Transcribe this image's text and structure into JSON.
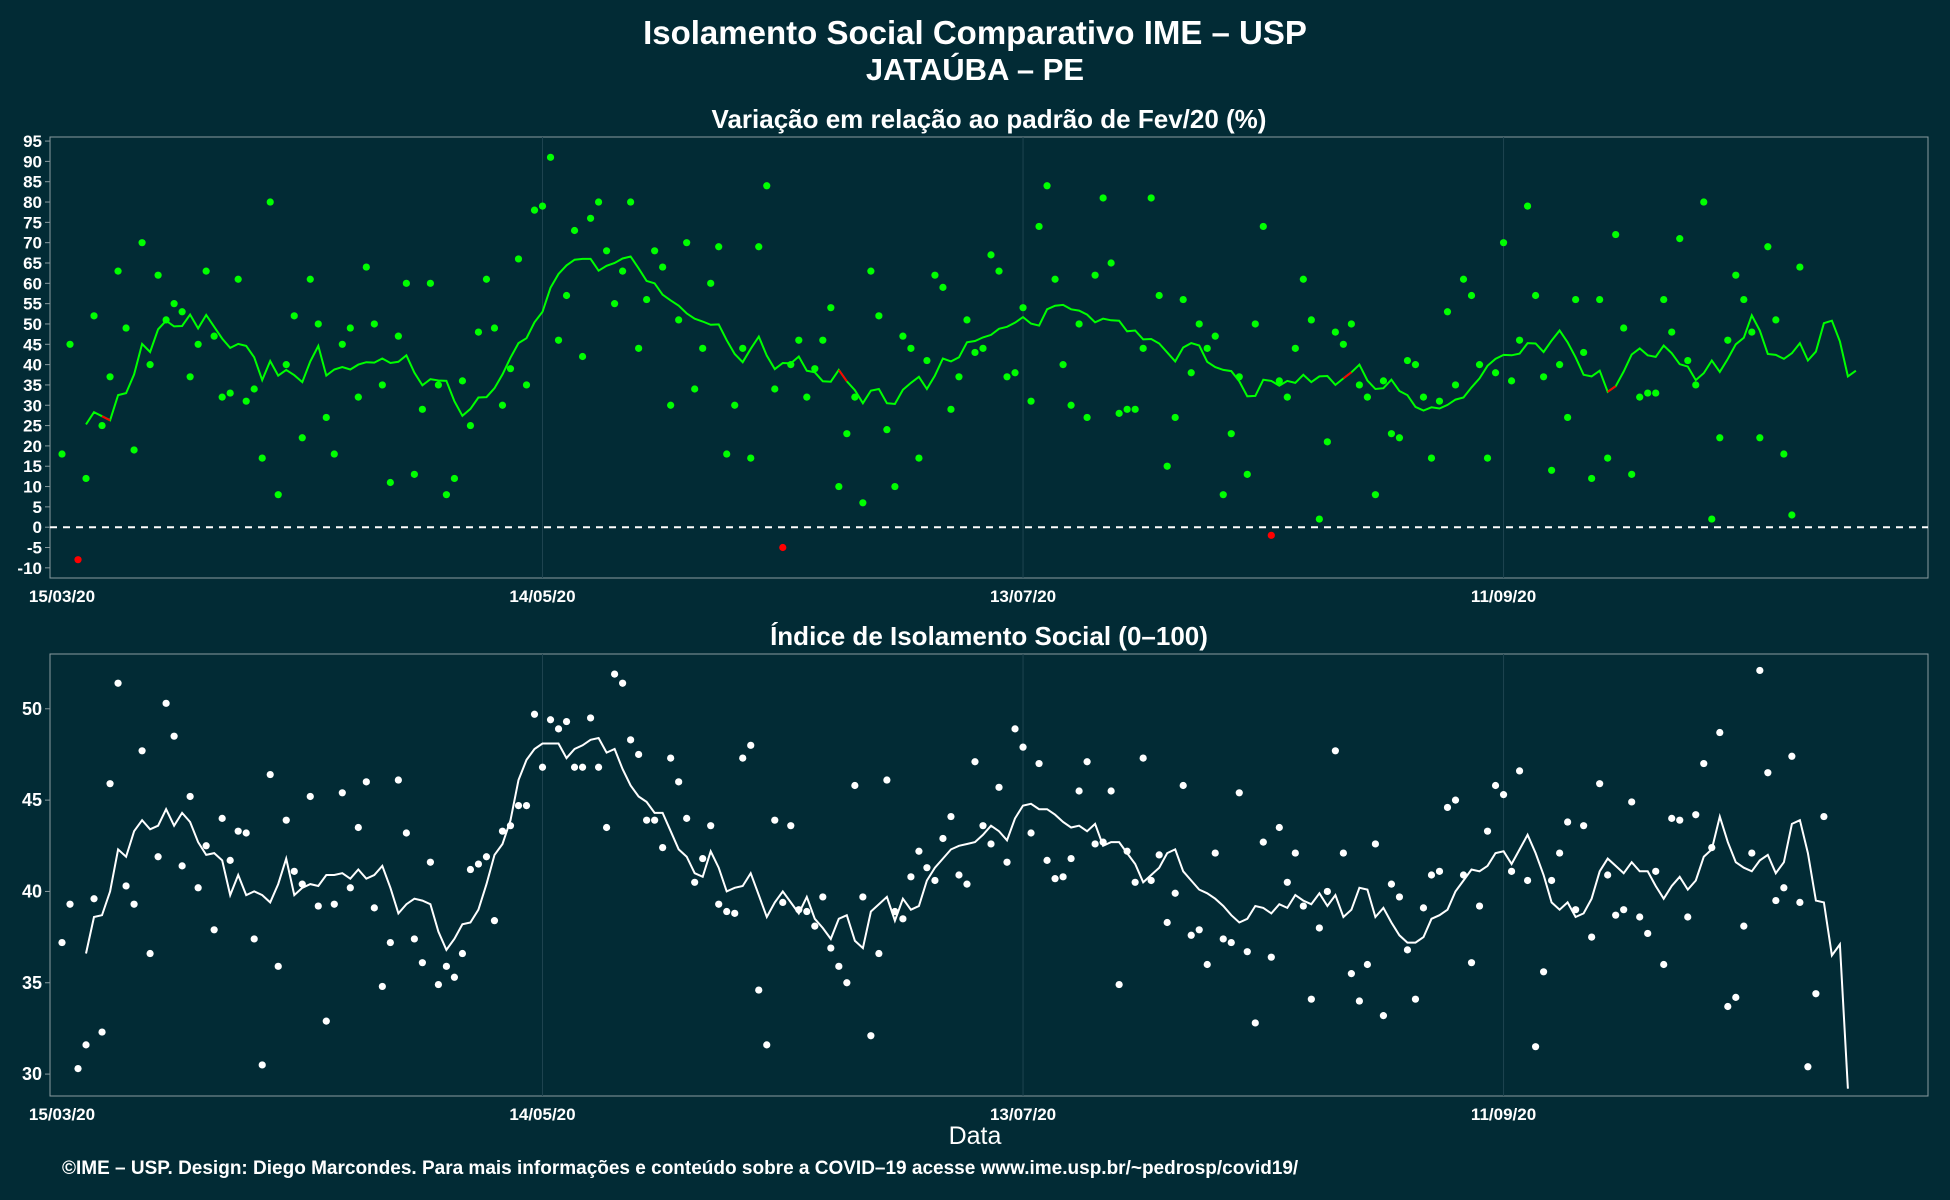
{
  "header": {
    "title": "Isolamento Social Comparativo IME – USP",
    "subtitle": "JATAÚBA – PE"
  },
  "footer": {
    "text": "©IME – USP. Design: Diego Marcondes. Para mais informações e conteúdo sobre a COVID–19 acesse www.ime.usp.br/~pedrosp/covid19/"
  },
  "colors": {
    "background": "#022b35",
    "positive": "#00ff00",
    "negative": "#ff0000",
    "index": "#ffffff",
    "grid": "#1e4450"
  },
  "chart_data": [
    {
      "type": "scatter",
      "title": "Variação em relação ao padrão de Fev/20 (%)",
      "xlabel": "",
      "ylabel": "",
      "x_start": "15/03/20",
      "x_end": "02/11/20",
      "xticks": [
        "15/03/20",
        "14/05/20",
        "13/07/20",
        "11/09/20"
      ],
      "yticks": [
        -10,
        -5,
        0,
        5,
        10,
        15,
        20,
        25,
        30,
        35,
        40,
        45,
        50,
        55,
        60,
        65,
        70,
        75,
        80,
        85,
        90,
        95
      ],
      "ylim": [
        -12.5,
        96
      ],
      "reference_line": 0,
      "grid": true,
      "series": [
        {
          "name": "",
          "points": [
            18,
            45,
            -8,
            12,
            52,
            25,
            37,
            63,
            49,
            19,
            70,
            40,
            62,
            51,
            55,
            53,
            37,
            45,
            63,
            47,
            32,
            33,
            61,
            31,
            34,
            17,
            80,
            8,
            40,
            52,
            22,
            61,
            50,
            27,
            18,
            45,
            49,
            32,
            64,
            50,
            35,
            11,
            47,
            60,
            13,
            29,
            60,
            35,
            8,
            12,
            36,
            25,
            48,
            61,
            49,
            30,
            39,
            66,
            35,
            78,
            79,
            91,
            46,
            57,
            73,
            42,
            76,
            80,
            68,
            55,
            63,
            80,
            44,
            56,
            68,
            64,
            30,
            51,
            70,
            34,
            44,
            60,
            69,
            18,
            30,
            44,
            17,
            69,
            84,
            34,
            -5,
            40,
            46,
            32,
            39,
            46,
            54,
            10,
            23,
            32,
            6,
            63,
            52,
            24,
            10,
            47,
            44,
            17,
            41,
            62,
            59,
            29,
            37,
            51,
            43,
            44,
            67,
            63,
            37,
            38,
            54,
            31,
            74,
            84,
            61,
            40,
            30,
            50,
            27,
            62,
            81,
            65,
            28,
            29,
            29,
            44,
            81,
            57,
            15,
            27,
            56,
            38,
            50,
            44,
            47,
            8,
            23,
            37,
            13,
            50,
            74,
            -2,
            36,
            32,
            44,
            61,
            51,
            2,
            21,
            48,
            45,
            50,
            35,
            32,
            8,
            36,
            23,
            22,
            41,
            40,
            32,
            17,
            31,
            53,
            35,
            61,
            57,
            40,
            17,
            38,
            70,
            36,
            46,
            79,
            57,
            37,
            14,
            40,
            27,
            56,
            43,
            12,
            56,
            17,
            72,
            49,
            13,
            32,
            33,
            33,
            56,
            48,
            71,
            41,
            35,
            80,
            2,
            22,
            46,
            62,
            56,
            48,
            22,
            69,
            51,
            18,
            3,
            64
          ]
        },
        {
          "name": "",
          "smoothed": [
            25.3,
            28.3,
            27.3,
            26.3,
            32.5,
            33.0,
            37.6,
            45.1,
            43.1,
            48.7,
            50.8,
            49.4,
            49.5,
            52.3,
            48.9,
            52.2,
            49.3,
            46.4,
            44.1,
            45.1,
            44.6,
            41.8,
            36.2,
            40.9,
            37.3,
            38.7,
            37.4,
            35.7,
            40.8,
            44.6,
            37.3,
            38.8,
            39.4,
            38.8,
            40.0,
            40.6,
            40.5,
            41.5,
            40.4,
            40.7,
            42.3,
            38.0,
            34.9,
            36.4,
            36.1,
            36.0,
            31.0,
            27.4,
            29.1,
            31.9,
            32.0,
            34.2,
            37.6,
            41.7,
            45.3,
            46.5,
            50.4,
            53.0,
            58.9,
            62.3,
            64.4,
            65.8,
            66.0,
            66.0,
            63.1,
            64.3,
            65.0,
            66.1,
            66.6,
            63.7,
            60.6,
            60.0,
            57.2,
            55.8,
            54.5,
            52.6,
            51.3,
            50.6,
            49.8,
            49.9,
            46.0,
            42.6,
            40.6,
            43.9,
            46.9,
            42.2,
            38.9,
            40.4,
            40.3,
            42.0,
            38.5,
            38.1,
            35.9,
            35.8,
            38.7,
            35.9,
            33.7,
            30.5,
            33.6,
            34.0,
            30.5,
            30.3,
            33.8,
            35.5,
            37.0,
            34.0,
            37.3,
            41.5,
            40.8,
            41.8,
            45.5,
            45.8,
            46.7,
            47.3,
            48.8,
            49.3,
            50.3,
            51.7,
            50.1,
            49.6,
            53.6,
            54.5,
            54.7,
            53.6,
            53.3,
            52.3,
            50.4,
            51.3,
            50.9,
            50.8,
            48.2,
            48.4,
            46.2,
            46.3,
            45.2,
            43.0,
            40.8,
            44.2,
            45.3,
            44.7,
            40.7,
            39.4,
            38.7,
            38.4,
            35.9,
            32.2,
            32.3,
            36.3,
            36.0,
            34.8,
            36.0,
            35.5,
            37.5,
            35.7,
            37.1,
            37.2,
            35.0,
            36.6,
            38.1,
            40.0,
            36.1,
            34.0,
            34.2,
            36.3,
            33.5,
            32.5,
            29.6,
            28.7,
            29.5,
            29.2,
            30.1,
            31.4,
            31.9,
            34.4,
            36.6,
            39.7,
            41.4,
            42.4,
            42.3,
            42.7,
            45.3,
            45.2,
            43.1,
            45.9,
            48.4,
            45.5,
            41.8,
            37.5,
            37.1,
            38.5,
            33.3,
            34.7,
            38.3,
            42.5,
            44.0,
            42.3,
            41.9,
            44.7,
            42.8,
            40.1,
            39.5,
            36.2,
            37.9,
            41.0,
            38.2,
            41.4,
            45.0,
            46.6,
            52.1,
            48.4,
            42.6,
            42.4,
            41.4,
            42.8,
            45.3,
            41.0,
            43.2,
            50.2,
            50.8,
            45.7,
            37.1,
            38.5
          ],
          "negative_segments": [
            [
              2,
              3
            ],
            [
              94,
              95
            ],
            [
              157,
              158
            ],
            [
              190,
              191
            ]
          ]
        }
      ]
    },
    {
      "type": "scatter",
      "title": "Índice de Isolamento Social (0–100)",
      "xlabel": "Data",
      "ylabel": "",
      "x_start": "15/03/20",
      "x_end": "02/11/20",
      "xticks": [
        "15/03/20",
        "14/05/20",
        "13/07/20",
        "11/09/20"
      ],
      "yticks": [
        30,
        35,
        40,
        45,
        50
      ],
      "ylim": [
        28.8,
        53.0
      ],
      "grid": true,
      "series": [
        {
          "name": "",
          "points": [
            37.2,
            39.3,
            30.3,
            31.6,
            39.6,
            32.3,
            45.9,
            51.4,
            40.3,
            39.3,
            47.7,
            36.6,
            41.9,
            50.3,
            48.5,
            41.4,
            45.2,
            40.2,
            42.5,
            37.9,
            44.0,
            41.7,
            43.3,
            43.2,
            37.4,
            30.5,
            46.4,
            35.9,
            43.9,
            41.1,
            40.4,
            45.2,
            39.2,
            32.9,
            39.3,
            45.4,
            40.2,
            43.5,
            46.0,
            39.1,
            34.8,
            37.2,
            46.1,
            43.2,
            37.4,
            36.1,
            41.6,
            34.9,
            35.9,
            35.3,
            36.6,
            41.2,
            41.5,
            41.9,
            38.4,
            43.3,
            43.6,
            44.7,
            44.7,
            49.7,
            46.8,
            49.4,
            48.9,
            49.3,
            46.8,
            46.8,
            49.5,
            46.8,
            43.5,
            51.9,
            51.4,
            48.3,
            47.5,
            43.9,
            43.9,
            42.4,
            47.3,
            46.0,
            44.0,
            40.5,
            41.8,
            43.6,
            39.3,
            38.9,
            38.8,
            47.3,
            48.0,
            34.6,
            31.6,
            43.9,
            39.4,
            43.6,
            39.0,
            38.9,
            38.1,
            39.7,
            36.9,
            35.9,
            35.0,
            45.8,
            39.7,
            32.1,
            36.6,
            46.1,
            38.9,
            38.5,
            40.8,
            42.2,
            41.3,
            40.6,
            42.9,
            44.1,
            40.9,
            40.4,
            47.1,
            43.6,
            42.6,
            45.7,
            41.6,
            48.9,
            47.9,
            43.2,
            47.0,
            41.7,
            40.7,
            40.8,
            41.8,
            45.5,
            47.1,
            42.6,
            42.7,
            45.5,
            34.9,
            42.2,
            40.5,
            47.3,
            40.6,
            42.0,
            38.3,
            39.9,
            45.8,
            37.6,
            37.9,
            36.0,
            42.1,
            37.4,
            37.2,
            45.4,
            36.7,
            32.8,
            42.7,
            36.4,
            43.5,
            40.5,
            42.1,
            39.2,
            34.1,
            38.0,
            40.0,
            47.7,
            42.1,
            35.5,
            34.0,
            36.0,
            42.6,
            33.2,
            40.4,
            39.7,
            36.8,
            34.1,
            39.1,
            40.9,
            41.1,
            44.6,
            45.0,
            40.9,
            36.1,
            39.2,
            43.3,
            45.8,
            45.3,
            41.1,
            46.6,
            40.6,
            31.5,
            35.6,
            40.6,
            42.1,
            43.8,
            39.0,
            43.6,
            37.5,
            45.9,
            40.9,
            38.7,
            39.0,
            44.9,
            38.6,
            37.7,
            41.1,
            36.0,
            44.0,
            43.9,
            38.6,
            44.2,
            47.0,
            42.4,
            48.7,
            33.7,
            34.2,
            38.1,
            42.1,
            52.1,
            46.5,
            39.5,
            40.2,
            47.4,
            39.4,
            30.4,
            34.4,
            44.1
          ]
        },
        {
          "name": "",
          "smoothed": [
            36.6,
            38.6,
            38.7,
            40.0,
            42.3,
            41.9,
            43.3,
            43.9,
            43.4,
            43.6,
            44.5,
            43.6,
            44.3,
            43.8,
            42.7,
            42.0,
            42.1,
            41.7,
            39.8,
            40.9,
            39.8,
            40.0,
            39.8,
            39.4,
            40.4,
            41.8,
            39.8,
            40.2,
            40.4,
            40.3,
            40.9,
            40.9,
            41.0,
            40.7,
            41.2,
            40.7,
            40.9,
            41.4,
            40.2,
            38.8,
            39.3,
            39.6,
            39.5,
            39.3,
            37.8,
            36.8,
            37.4,
            38.2,
            38.3,
            39.0,
            40.4,
            42.0,
            42.6,
            43.9,
            46.1,
            47.2,
            47.8,
            48.1,
            48.1,
            48.1,
            47.3,
            47.8,
            48.0,
            48.3,
            48.4,
            47.6,
            47.8,
            46.7,
            45.8,
            45.2,
            44.9,
            44.3,
            44.3,
            43.3,
            42.3,
            41.9,
            41.0,
            40.8,
            42.2,
            41.3,
            40.0,
            40.2,
            40.3,
            41.0,
            39.8,
            38.6,
            39.4,
            40.0,
            39.4,
            38.8,
            39.7,
            38.5,
            38.0,
            37.4,
            38.5,
            38.7,
            37.3,
            36.9,
            38.9,
            39.3,
            39.7,
            38.4,
            39.6,
            39.0,
            39.2,
            40.6,
            41.3,
            41.8,
            42.3,
            42.5,
            42.6,
            42.7,
            43.1,
            43.6,
            43.3,
            42.8,
            44.0,
            44.7,
            44.8,
            44.5,
            44.5,
            44.2,
            43.8,
            43.5,
            43.6,
            43.3,
            43.7,
            42.5,
            42.7,
            42.7,
            42.1,
            41.5,
            40.5,
            40.9,
            41.3,
            42.1,
            42.3,
            41.1,
            40.6,
            40.1,
            39.9,
            39.6,
            39.2,
            38.7,
            38.3,
            38.5,
            39.2,
            39.1,
            38.8,
            39.3,
            39.1,
            39.8,
            39.5,
            39.3,
            39.9,
            39.2,
            39.8,
            38.6,
            39.0,
            40.2,
            40.1,
            38.6,
            39.1,
            38.3,
            37.6,
            37.2,
            37.2,
            37.5,
            38.5,
            38.7,
            39.0,
            40.0,
            40.6,
            41.2,
            41.1,
            41.4,
            42.1,
            42.2,
            41.5,
            42.3,
            43.1,
            42.1,
            40.9,
            39.4,
            39.0,
            39.4,
            38.6,
            38.8,
            39.6,
            41.1,
            41.8,
            41.4,
            41.0,
            41.6,
            41.1,
            41.1,
            40.3,
            39.6,
            40.3,
            40.8,
            40.1,
            40.6,
            41.9,
            42.3,
            44.1,
            42.7,
            41.6,
            41.3,
            41.1,
            41.7,
            42.0,
            41.0,
            41.6,
            43.7,
            43.9,
            42.1,
            39.5,
            39.4,
            36.5,
            37.1,
            29.2
          ]
        }
      ]
    }
  ]
}
